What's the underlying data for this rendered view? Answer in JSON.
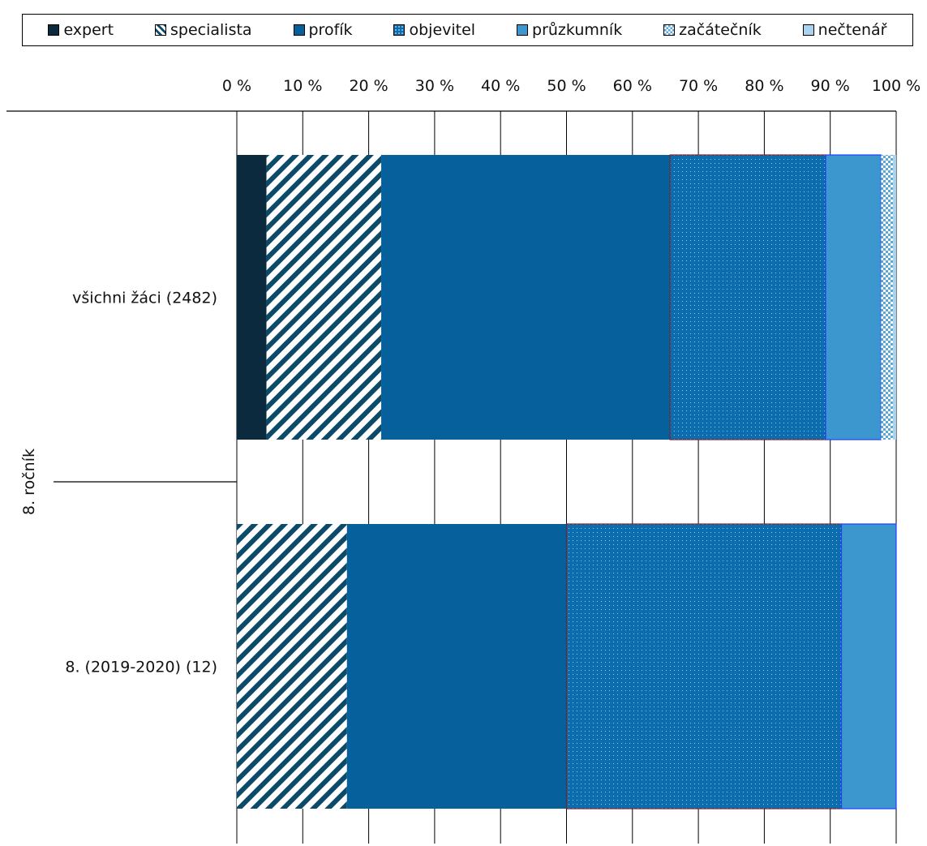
{
  "chart_data": {
    "type": "bar",
    "orientation": "horizontal",
    "stacked": "percent",
    "group_label": "8. ročník",
    "categories": [
      "všichni žáci (2482)",
      "8. (2019-2020) (12)"
    ],
    "x_ticks": [
      "0 %",
      "10 %",
      "20 %",
      "30 %",
      "40 %",
      "50 %",
      "60 %",
      "70 %",
      "80 %",
      "90 %",
      "100 %"
    ],
    "xlim": [
      0,
      100
    ],
    "grid": true,
    "legend_position": "top",
    "series": [
      {
        "name": "expert",
        "values": [
          4.5,
          0
        ],
        "color": "#0b2a3d",
        "pattern": "solid"
      },
      {
        "name": "specialista",
        "values": [
          17.4,
          16.7
        ],
        "color": "#0b4a68",
        "pattern": "diagonal"
      },
      {
        "name": "profík",
        "values": [
          43.8,
          33.3
        ],
        "color": "#05609b",
        "pattern": "solid"
      },
      {
        "name": "objevitel",
        "values": [
          23.6,
          41.7
        ],
        "color": "#0b6cae",
        "pattern": "dots"
      },
      {
        "name": "průzkumník",
        "values": [
          8.4,
          8.3
        ],
        "color": "#3c97cf",
        "pattern": "solid"
      },
      {
        "name": "začátečník",
        "values": [
          1.8,
          0
        ],
        "color": "#5aa7d8",
        "pattern": "checker"
      },
      {
        "name": "nečtenář",
        "values": [
          0.5,
          0
        ],
        "color": "#a8d4f2",
        "pattern": "solid"
      }
    ]
  }
}
